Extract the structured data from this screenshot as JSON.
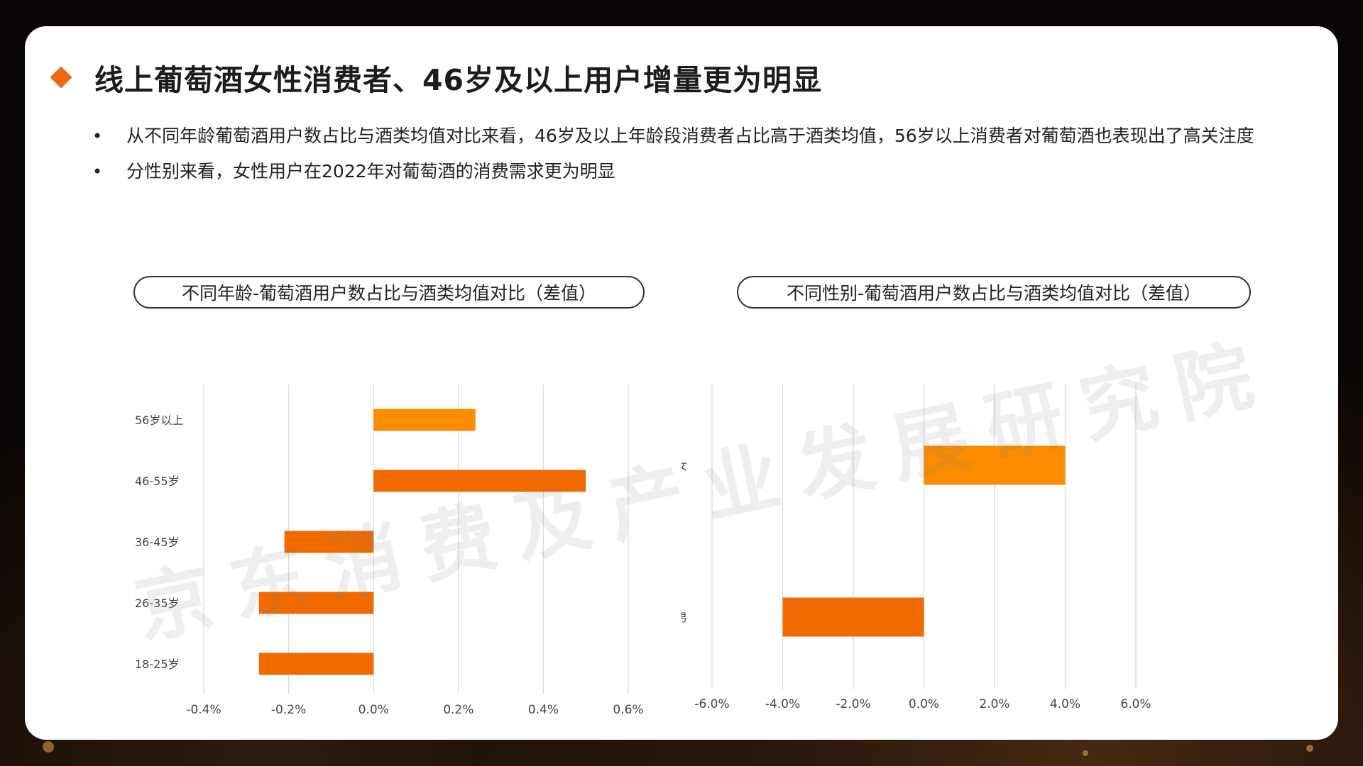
{
  "page": {
    "title": "线上葡萄酒女性消费者、46岁及以上用户增量更为明显",
    "bullets": [
      "从不同年龄葡萄酒用户数占比与酒类均值对比来看，46岁及以上年龄段消费者占比高于酒类均值，56岁以上消费者对葡萄酒也表现出了高关注度",
      "分性别来看，女性用户在2022年对葡萄酒的消费需求更为明显"
    ],
    "watermark": "京东消费及产业发展研究院"
  },
  "colors": {
    "accent": "#ec6a14",
    "bar_light": "#fb8c00",
    "bar_dark": "#f06a00",
    "grid": "#d9d9d9"
  },
  "chart_data": [
    {
      "type": "bar",
      "orientation": "horizontal",
      "title": "不同年龄-葡萄酒用户数占比与酒类均值对比（差值）",
      "categories": [
        "56岁以上",
        "46-55岁",
        "36-45岁",
        "26-35岁",
        "18-25岁"
      ],
      "values": [
        0.24,
        0.5,
        -0.21,
        -0.27,
        -0.27
      ],
      "bar_colors": [
        "#fb8c00",
        "#f06a00",
        "#f06a00",
        "#f06a00",
        "#f06a00"
      ],
      "unit": "%",
      "xlim": [
        -0.4,
        0.6
      ],
      "xticks": [
        -0.4,
        -0.2,
        0.0,
        0.2,
        0.4,
        0.6
      ],
      "xtick_labels": [
        "-0.4%",
        "-0.2%",
        "0.0%",
        "0.2%",
        "0.4%",
        "0.6%"
      ],
      "grid": true,
      "legend": "none"
    },
    {
      "type": "bar",
      "orientation": "horizontal",
      "title": "不同性别-葡萄酒用户数占比与酒类均值对比（差值）",
      "categories": [
        "女",
        "男"
      ],
      "values": [
        4.0,
        -4.0
      ],
      "bar_colors": [
        "#fb8c00",
        "#f06a00"
      ],
      "unit": "%",
      "xlim": [
        -6.0,
        6.0
      ],
      "xticks": [
        -6.0,
        -4.0,
        -2.0,
        0.0,
        2.0,
        4.0,
        6.0
      ],
      "xtick_labels": [
        "-6.0%",
        "-4.0%",
        "-2.0%",
        "0.0%",
        "2.0%",
        "4.0%",
        "6.0%"
      ],
      "grid": true,
      "legend": "none"
    }
  ]
}
